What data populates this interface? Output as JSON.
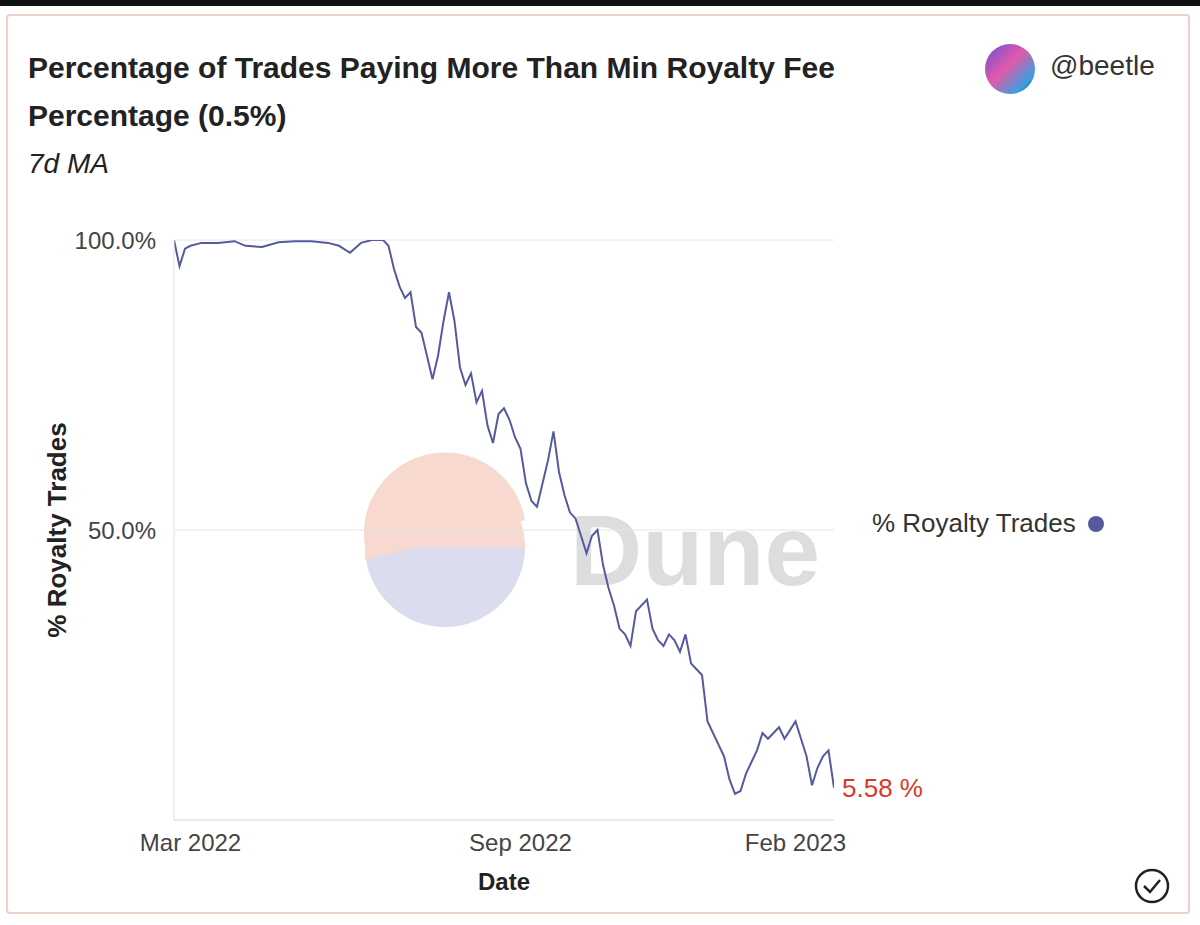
{
  "chart_data": {
    "type": "line",
    "title": "Percentage of Trades Paying More Than Min Royalty Fee Percentage (0.5%)",
    "subtitle": "7d MA",
    "author": "@beetle",
    "watermark": "Dune",
    "x_label": "Date",
    "y_label": "% Royalty Trades",
    "x": [
      1.7,
      1.8,
      1.9,
      2.0,
      2.2,
      2.5,
      2.8,
      3.0,
      3.3,
      3.6,
      3.9,
      4.2,
      4.5,
      4.7,
      4.9,
      5.1,
      5.3,
      5.5,
      5.6,
      5.7,
      5.8,
      5.9,
      6.0,
      6.1,
      6.2,
      6.3,
      6.4,
      6.5,
      6.6,
      6.7,
      6.8,
      6.9,
      7.0,
      7.1,
      7.2,
      7.3,
      7.4,
      7.5,
      7.6,
      7.7,
      7.8,
      7.9,
      8.0,
      8.1,
      8.2,
      8.3,
      8.4,
      8.5,
      8.6,
      8.7,
      8.8,
      8.9,
      9.0,
      9.1,
      9.2,
      9.3,
      9.4,
      9.5,
      9.6,
      9.7,
      9.8,
      9.9,
      10.0,
      10.1,
      10.2,
      10.3,
      10.4,
      10.5,
      10.6,
      10.7,
      10.8,
      10.9,
      11.0,
      11.1,
      11.2,
      11.3,
      11.4,
      11.5,
      11.6,
      11.7,
      11.8,
      11.9,
      12.0,
      12.1,
      12.2,
      12.3,
      12.4,
      12.5,
      12.6,
      12.7,
      12.8,
      12.9,
      13.0,
      13.1,
      13.2,
      13.3,
      13.4,
      13.5,
      13.6,
      13.7
    ],
    "series": [
      {
        "name": "% Royalty Trades",
        "color": "#555a9e",
        "marker": "none",
        "values": [
          100,
          95.5,
          98.5,
          99,
          99.5,
          99.5,
          99.8,
          99,
          98.8,
          99.6,
          99.8,
          99.8,
          99.5,
          99,
          97.8,
          99.5,
          100,
          100,
          99,
          95,
          92,
          90,
          91,
          85,
          84,
          80,
          76,
          80,
          86,
          91,
          86,
          78,
          75,
          77,
          72,
          74,
          68,
          65,
          70,
          71,
          69,
          66,
          64,
          58,
          55,
          54,
          58,
          62,
          67,
          60,
          56,
          53,
          52,
          49,
          46,
          49,
          50,
          44,
          40,
          37,
          33,
          32,
          30,
          36,
          37,
          38,
          33,
          31,
          30,
          32,
          31,
          29,
          32,
          27,
          26,
          25,
          17,
          15,
          13,
          11,
          7,
          4.5,
          5,
          8,
          10,
          12,
          15,
          14,
          15,
          16,
          14,
          15.5,
          17,
          14,
          11,
          6,
          9,
          11,
          12,
          5.58
        ]
      }
    ],
    "xlim": [
      1.7,
      13.7
    ],
    "xticks": [
      {
        "value": 2,
        "label": "Mar 2022"
      },
      {
        "value": 8,
        "label": "Sep 2022"
      },
      {
        "value": 13,
        "label": "Feb 2023"
      }
    ],
    "ylim": [
      0,
      100
    ],
    "yticks": [
      {
        "value": 50,
        "label": "50.0%"
      },
      {
        "value": 100,
        "label": "100.0%"
      }
    ],
    "grid": true,
    "legend": "right",
    "annotations": [
      {
        "text": "5.58 %",
        "x": 13.7,
        "y": 5.58,
        "color": "#d9382c"
      }
    ]
  }
}
